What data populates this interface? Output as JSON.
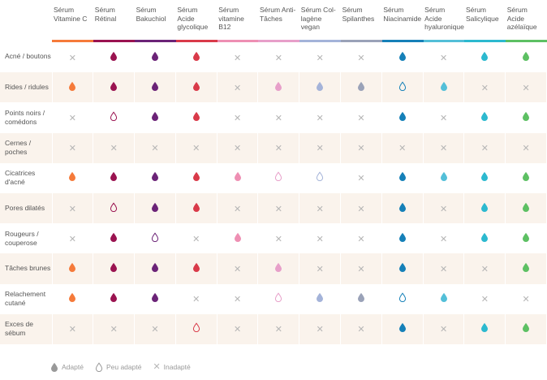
{
  "colors": {
    "vitc": "#f57a3a",
    "retinal": "#9a1350",
    "bakuchiol": "#6b2377",
    "glycolique": "#d93a49",
    "b12": "#ee8fb3",
    "antitaches": "#e79fc9",
    "collagene": "#a4b3d9",
    "spilanthes": "#9aa2b8",
    "niacinamide": "#1580b8",
    "hyaluronique": "#53bfd8",
    "salicylique": "#2cb9cf",
    "azelaique": "#5dc063",
    "legend": "#999999"
  },
  "columns": [
    {
      "key": "vitc",
      "label": "Sérum Vitamine C"
    },
    {
      "key": "retinal",
      "label": "Sérum Rétinal"
    },
    {
      "key": "bakuchiol",
      "label": "Sérum Bakuchiol"
    },
    {
      "key": "glycolique",
      "label": "Sérum Acide glycolique"
    },
    {
      "key": "b12",
      "label": "Sérum vitamine B12"
    },
    {
      "key": "antitaches",
      "label": "Sérum Anti-Tâches"
    },
    {
      "key": "collagene",
      "label": "Sérum Col-lagène vegan"
    },
    {
      "key": "spilanthes",
      "label": "Sérum Spilanthes"
    },
    {
      "key": "niacinamide",
      "label": "Sérum Niacinamide"
    },
    {
      "key": "hyaluronique",
      "label": "Sérum Acide hyaluronique"
    },
    {
      "key": "salicylique",
      "label": "Sérum Salicylique"
    },
    {
      "key": "azelaique",
      "label": "Sérum Acide azélaïque"
    }
  ],
  "rows": [
    {
      "label": "Acné / boutons",
      "values": [
        "x",
        "a",
        "a",
        "a",
        "x",
        "x",
        "x",
        "x",
        "a",
        "x",
        "a",
        "a"
      ]
    },
    {
      "label": "Rides / ridules",
      "values": [
        "a",
        "a",
        "a",
        "a",
        "x",
        "a",
        "a",
        "a",
        "p",
        "a",
        "x",
        "x"
      ]
    },
    {
      "label": "Points noirs / comédons",
      "values": [
        "x",
        "p",
        "a",
        "a",
        "x",
        "x",
        "x",
        "x",
        "a",
        "x",
        "a",
        "a"
      ]
    },
    {
      "label": "Cernes / poches",
      "values": [
        "x",
        "x",
        "x",
        "x",
        "x",
        "x",
        "x",
        "x",
        "x",
        "x",
        "x",
        "x"
      ]
    },
    {
      "label": "Cicatrices d'acné",
      "values": [
        "a",
        "a",
        "a",
        "a",
        "a",
        "p",
        "p",
        "x",
        "a",
        "a",
        "a",
        "a"
      ]
    },
    {
      "label": "Pores dilatés",
      "values": [
        "x",
        "p",
        "a",
        "a",
        "x",
        "x",
        "x",
        "x",
        "a",
        "x",
        "a",
        "a"
      ]
    },
    {
      "label": "Rougeurs / couperose",
      "values": [
        "x",
        "a",
        "p",
        "x",
        "a",
        "x",
        "x",
        "x",
        "a",
        "x",
        "a",
        "a"
      ]
    },
    {
      "label": "Tâches brunes",
      "values": [
        "a",
        "a",
        "a",
        "a",
        "x",
        "a",
        "x",
        "x",
        "a",
        "x",
        "x",
        "a"
      ]
    },
    {
      "label": "Relachement cutané",
      "values": [
        "a",
        "a",
        "a",
        "x",
        "x",
        "p",
        "a",
        "a",
        "p",
        "a",
        "x",
        "x"
      ]
    },
    {
      "label": "Exces de sébum",
      "values": [
        "x",
        "x",
        "x",
        "p",
        "x",
        "x",
        "x",
        "x",
        "a",
        "x",
        "a",
        "a"
      ]
    }
  ],
  "legend": {
    "adapte": "Adapté",
    "peu_adapte": "Peu adapté",
    "inadapte": "Inadapté"
  }
}
